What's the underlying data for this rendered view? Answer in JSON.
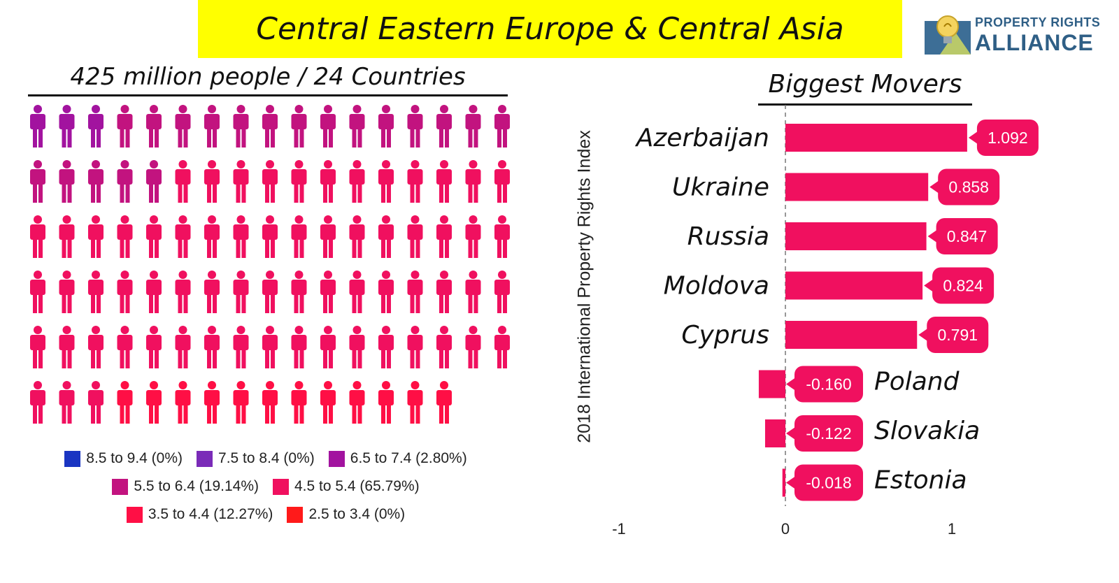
{
  "header": {
    "title": "Central Eastern Europe & Central Asia"
  },
  "logo": {
    "line1": "PROPERTY RIGHTS",
    "line2": "ALLIANCE"
  },
  "people_panel": {
    "subtitle": "425 million people / 24 Countries",
    "icon": "person-icon",
    "rows": [
      [
        "#a2139f",
        "#a2139f",
        "#a2139f",
        "#c2137f",
        "#c2137f",
        "#c2137f",
        "#c2137f",
        "#c2137f",
        "#c2137f",
        "#c2137f",
        "#c2137f",
        "#c2137f",
        "#c2137f",
        "#c2137f",
        "#c2137f",
        "#c2137f",
        "#c2137f"
      ],
      [
        "#c2137f",
        "#c2137f",
        "#c2137f",
        "#c2137f",
        "#c2137f",
        "#f0105f",
        "#f0105f",
        "#f0105f",
        "#f0105f",
        "#f0105f",
        "#f0105f",
        "#f0105f",
        "#f0105f",
        "#f0105f",
        "#f0105f",
        "#f0105f",
        "#f0105f"
      ],
      [
        "#f0105f",
        "#f0105f",
        "#f0105f",
        "#f0105f",
        "#f0105f",
        "#f0105f",
        "#f0105f",
        "#f0105f",
        "#f0105f",
        "#f0105f",
        "#f0105f",
        "#f0105f",
        "#f0105f",
        "#f0105f",
        "#f0105f",
        "#f0105f",
        "#f0105f"
      ],
      [
        "#f0105f",
        "#f0105f",
        "#f0105f",
        "#f0105f",
        "#f0105f",
        "#f0105f",
        "#f0105f",
        "#f0105f",
        "#f0105f",
        "#f0105f",
        "#f0105f",
        "#f0105f",
        "#f0105f",
        "#f0105f",
        "#f0105f",
        "#f0105f",
        "#f0105f"
      ],
      [
        "#f0105f",
        "#f0105f",
        "#f0105f",
        "#f0105f",
        "#f0105f",
        "#f0105f",
        "#f0105f",
        "#f0105f",
        "#f0105f",
        "#f0105f",
        "#f0105f",
        "#f0105f",
        "#f0105f",
        "#f0105f",
        "#f0105f",
        "#f0105f",
        "#f0105f"
      ],
      [
        "#f0105f",
        "#f0105f",
        "#f0105f",
        "#ff0f45",
        "#ff0f45",
        "#ff0f45",
        "#ff0f45",
        "#ff0f45",
        "#ff0f45",
        "#ff0f45",
        "#ff0f45",
        "#ff0f45",
        "#ff0f45",
        "#ff0f45",
        "#ff0f45"
      ]
    ]
  },
  "legend": {
    "rows": [
      [
        {
          "label": "8.5 to 9.4 (0%)",
          "color": "#1a35c2"
        },
        {
          "label": "7.5 to 8.4 (0%)",
          "color": "#7a2bb8"
        },
        {
          "label": "6.5 to 7.4 (2.80%)",
          "color": "#a2139f"
        }
      ],
      [
        {
          "label": "5.5 to 6.4 (19.14%)",
          "color": "#c2137f"
        },
        {
          "label": "4.5 to 5.4 (65.79%)",
          "color": "#f0105f"
        }
      ],
      [
        {
          "label": "3.5 to 4.4 (12.27%)",
          "color": "#ff0f45"
        },
        {
          "label": "2.5 to 3.4 (0%)",
          "color": "#ff1a1a"
        }
      ]
    ]
  },
  "movers": {
    "title": "Biggest Movers",
    "axis_title": "2018 International Property Rights Index"
  },
  "chart_data": {
    "type": "bar",
    "orientation": "horizontal",
    "title": "Biggest Movers",
    "ylabel": "2018 International Property Rights Index",
    "categories": [
      "Azerbaijan",
      "Ukraine",
      "Russia",
      "Moldova",
      "Cyprus",
      "Poland",
      "Slovakia",
      "Estonia"
    ],
    "values": [
      1.092,
      0.858,
      0.847,
      0.824,
      0.791,
      -0.16,
      -0.122,
      -0.018
    ],
    "value_labels": [
      "1.092",
      "0.858",
      "0.847",
      "0.824",
      "0.791",
      "-0.160",
      "-0.122",
      "-0.018"
    ],
    "xlim": [
      -1,
      1
    ],
    "xticks": [
      "-1",
      "0",
      "1"
    ],
    "bar_color": "#f0105f",
    "zero_line": "dashed"
  }
}
